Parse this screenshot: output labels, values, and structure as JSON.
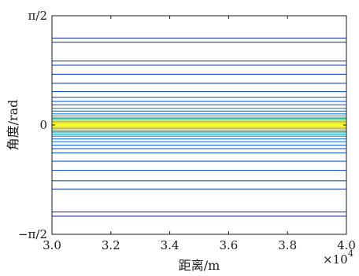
{
  "chart_data": {
    "type": "line",
    "title": "",
    "xlabel": "距离/m",
    "ylabel": "角度/rad",
    "x_multiplier_label": "×10",
    "x_multiplier_exponent": "4",
    "xlim": [
      3.0,
      4.0
    ],
    "ylim": [
      -1.5708,
      1.5708
    ],
    "x_ticks": [
      3.0,
      3.2,
      3.4,
      3.6,
      3.8,
      4.0
    ],
    "x_tick_labels": [
      "3.0",
      "3.2",
      "3.4",
      "3.6",
      "3.8",
      "4.0"
    ],
    "y_ticks": [
      -1.5708,
      0,
      1.5708
    ],
    "y_tick_labels": [
      "−π/2",
      "0",
      "π/2"
    ],
    "grid": false,
    "colormap": "parula",
    "series": [
      {
        "y": 1.25,
        "level": 0.05
      },
      {
        "y": 1.19,
        "level": 0.06
      },
      {
        "y": 0.92,
        "level": 0.08
      },
      {
        "y": 0.86,
        "level": 0.09
      },
      {
        "y": 0.73,
        "level": 0.1
      },
      {
        "y": 0.6,
        "level": 0.12
      },
      {
        "y": 0.48,
        "level": 0.14
      },
      {
        "y": 0.4,
        "level": 0.15
      },
      {
        "y": 0.34,
        "level": 0.16
      },
      {
        "y": 0.29,
        "level": 0.18
      },
      {
        "y": 0.24,
        "level": 0.22
      },
      {
        "y": 0.2,
        "level": 0.3
      },
      {
        "y": 0.16,
        "level": 0.42
      },
      {
        "y": 0.13,
        "level": 0.55
      },
      {
        "y": 0.1,
        "level": 0.66
      },
      {
        "y": 0.075,
        "level": 0.78
      },
      {
        "y": 0.05,
        "level": 0.88
      },
      {
        "y": 0.03,
        "level": 0.96
      },
      {
        "y": 0.01,
        "level": 1.0
      },
      {
        "y": -0.01,
        "level": 1.0
      },
      {
        "y": -0.03,
        "level": 0.96
      },
      {
        "y": -0.05,
        "level": 0.88
      },
      {
        "y": -0.075,
        "level": 0.78
      },
      {
        "y": -0.1,
        "level": 0.66
      },
      {
        "y": -0.13,
        "level": 0.55
      },
      {
        "y": -0.16,
        "level": 0.42
      },
      {
        "y": -0.2,
        "level": 0.3
      },
      {
        "y": -0.24,
        "level": 0.22
      },
      {
        "y": -0.29,
        "level": 0.18
      },
      {
        "y": -0.34,
        "level": 0.16
      },
      {
        "y": -0.4,
        "level": 0.15
      },
      {
        "y": -0.52,
        "level": 0.13
      },
      {
        "y": -0.65,
        "level": 0.11
      },
      {
        "y": -0.8,
        "level": 0.09
      },
      {
        "y": -0.92,
        "level": 0.08
      },
      {
        "y": -1.25,
        "level": 0.06
      },
      {
        "y": -1.31,
        "level": 0.05
      }
    ]
  }
}
